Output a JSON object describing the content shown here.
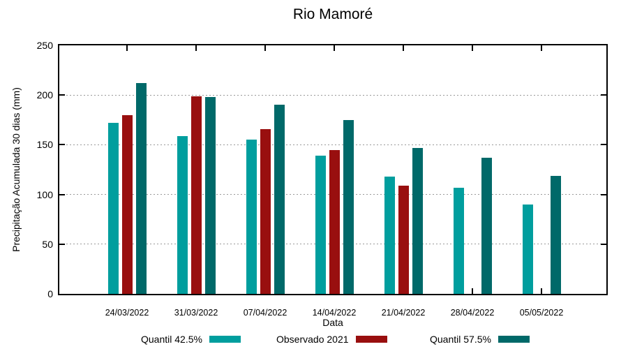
{
  "title": "Rio Mamoré",
  "colors": {
    "background": "#FFFFFF",
    "axis": "#000000",
    "text": "#000000",
    "grid": "#999999",
    "quantil_425": "#009E9E",
    "observado": "#990F0F",
    "quantil_575": "#006969"
  },
  "chart_data": {
    "type": "bar",
    "title": "Rio Mamoré",
    "xlabel": "Data",
    "ylabel": "Precipitação Acumulada 30 dias (mm)",
    "ylim": [
      0,
      250
    ],
    "yticks": [
      0,
      50,
      100,
      150,
      200,
      250
    ],
    "grid": "horizontal dashed gridlines at y ticks",
    "legend_position": "bottom",
    "categories": [
      "24/03/2022",
      "31/03/2022",
      "07/04/2022",
      "14/04/2022",
      "21/04/2022",
      "28/04/2022",
      "05/05/2022"
    ],
    "series": [
      {
        "name": "Quantil 42.5%",
        "color": "#009E9E",
        "values": [
          172,
          159,
          155,
          139,
          118,
          107,
          90
        ]
      },
      {
        "name": "Observado 2021",
        "color": "#990F0F",
        "values": [
          180,
          199,
          166,
          145,
          109,
          null,
          null
        ]
      },
      {
        "name": "Quantil 57.5%",
        "color": "#006969",
        "values": [
          212,
          198,
          190,
          175,
          147,
          137,
          119
        ]
      }
    ]
  },
  "legend": {
    "items": [
      {
        "label": "Quantil 42.5%",
        "color": "#009E9E"
      },
      {
        "label": "Observado 2021",
        "color": "#990F0F"
      },
      {
        "label": "Quantil 57.5%",
        "color": "#006969"
      }
    ]
  }
}
